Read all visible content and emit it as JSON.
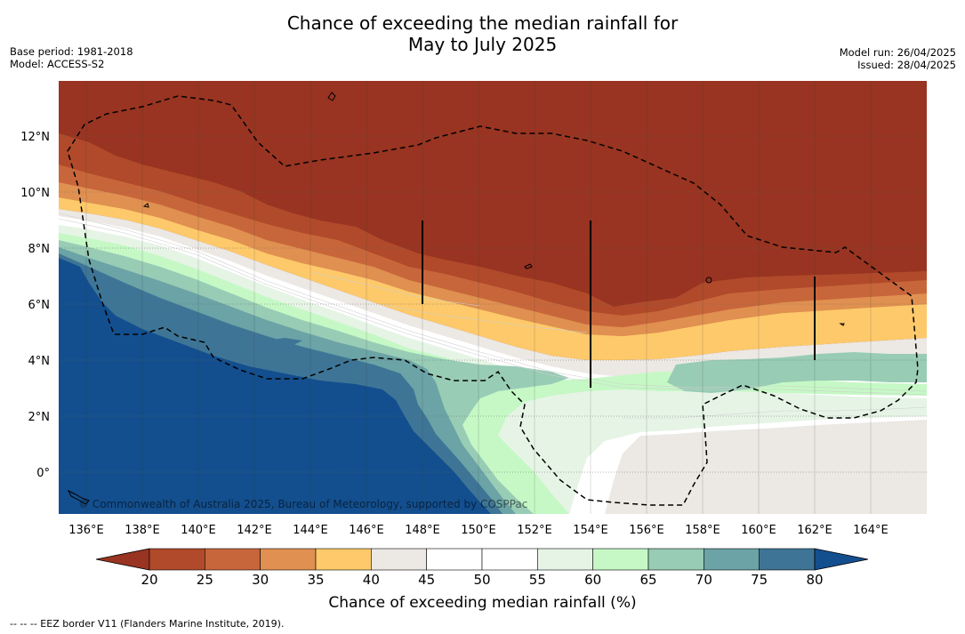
{
  "title": {
    "line1": "Chance of exceeding the median rainfall for",
    "line2": "May to July 2025"
  },
  "meta_left": {
    "base_period": "Base period: 1981-2018",
    "model": "Model: ACCESS-S2"
  },
  "meta_right": {
    "model_run": "Model run: 26/04/2025",
    "issued": "Issued: 28/04/2025"
  },
  "map": {
    "lon_range": [
      135.0,
      166.0
    ],
    "lat_range": [
      -1.5,
      14.0
    ],
    "lon_ticks": [
      "136°E",
      "138°E",
      "140°E",
      "142°E",
      "144°E",
      "146°E",
      "148°E",
      "150°E",
      "152°E",
      "154°E",
      "156°E",
      "158°E",
      "160°E",
      "162°E",
      "164°E"
    ],
    "lat_ticks": [
      "12°N",
      "10°N",
      "8°N",
      "6°N",
      "4°N",
      "2°N",
      "0°"
    ],
    "gridlines": true,
    "copyright": "© Commonwealth of Australia 2025, Bureau of Meteorology, supported by COSPPac"
  },
  "colorbar": {
    "title": "Chance of exceeding median rainfall (%)",
    "ticks": [
      "20",
      "25",
      "30",
      "35",
      "40",
      "45",
      "50",
      "55",
      "60",
      "65",
      "70",
      "75",
      "80"
    ],
    "colors": [
      "#983421",
      "#b04a2a",
      "#c8663b",
      "#e09050",
      "#fdc96a",
      "#ece8e4",
      "#ffffff",
      "#ffffff",
      "#e6f4e6",
      "#c5f8c5",
      "#98ccb5",
      "#6ba3a6",
      "#3e7596",
      "#134f8e"
    ],
    "extend": "both"
  },
  "footnote": "--  --  -- EEZ border V11 (Flanders Marine Institute, 2019)."
}
